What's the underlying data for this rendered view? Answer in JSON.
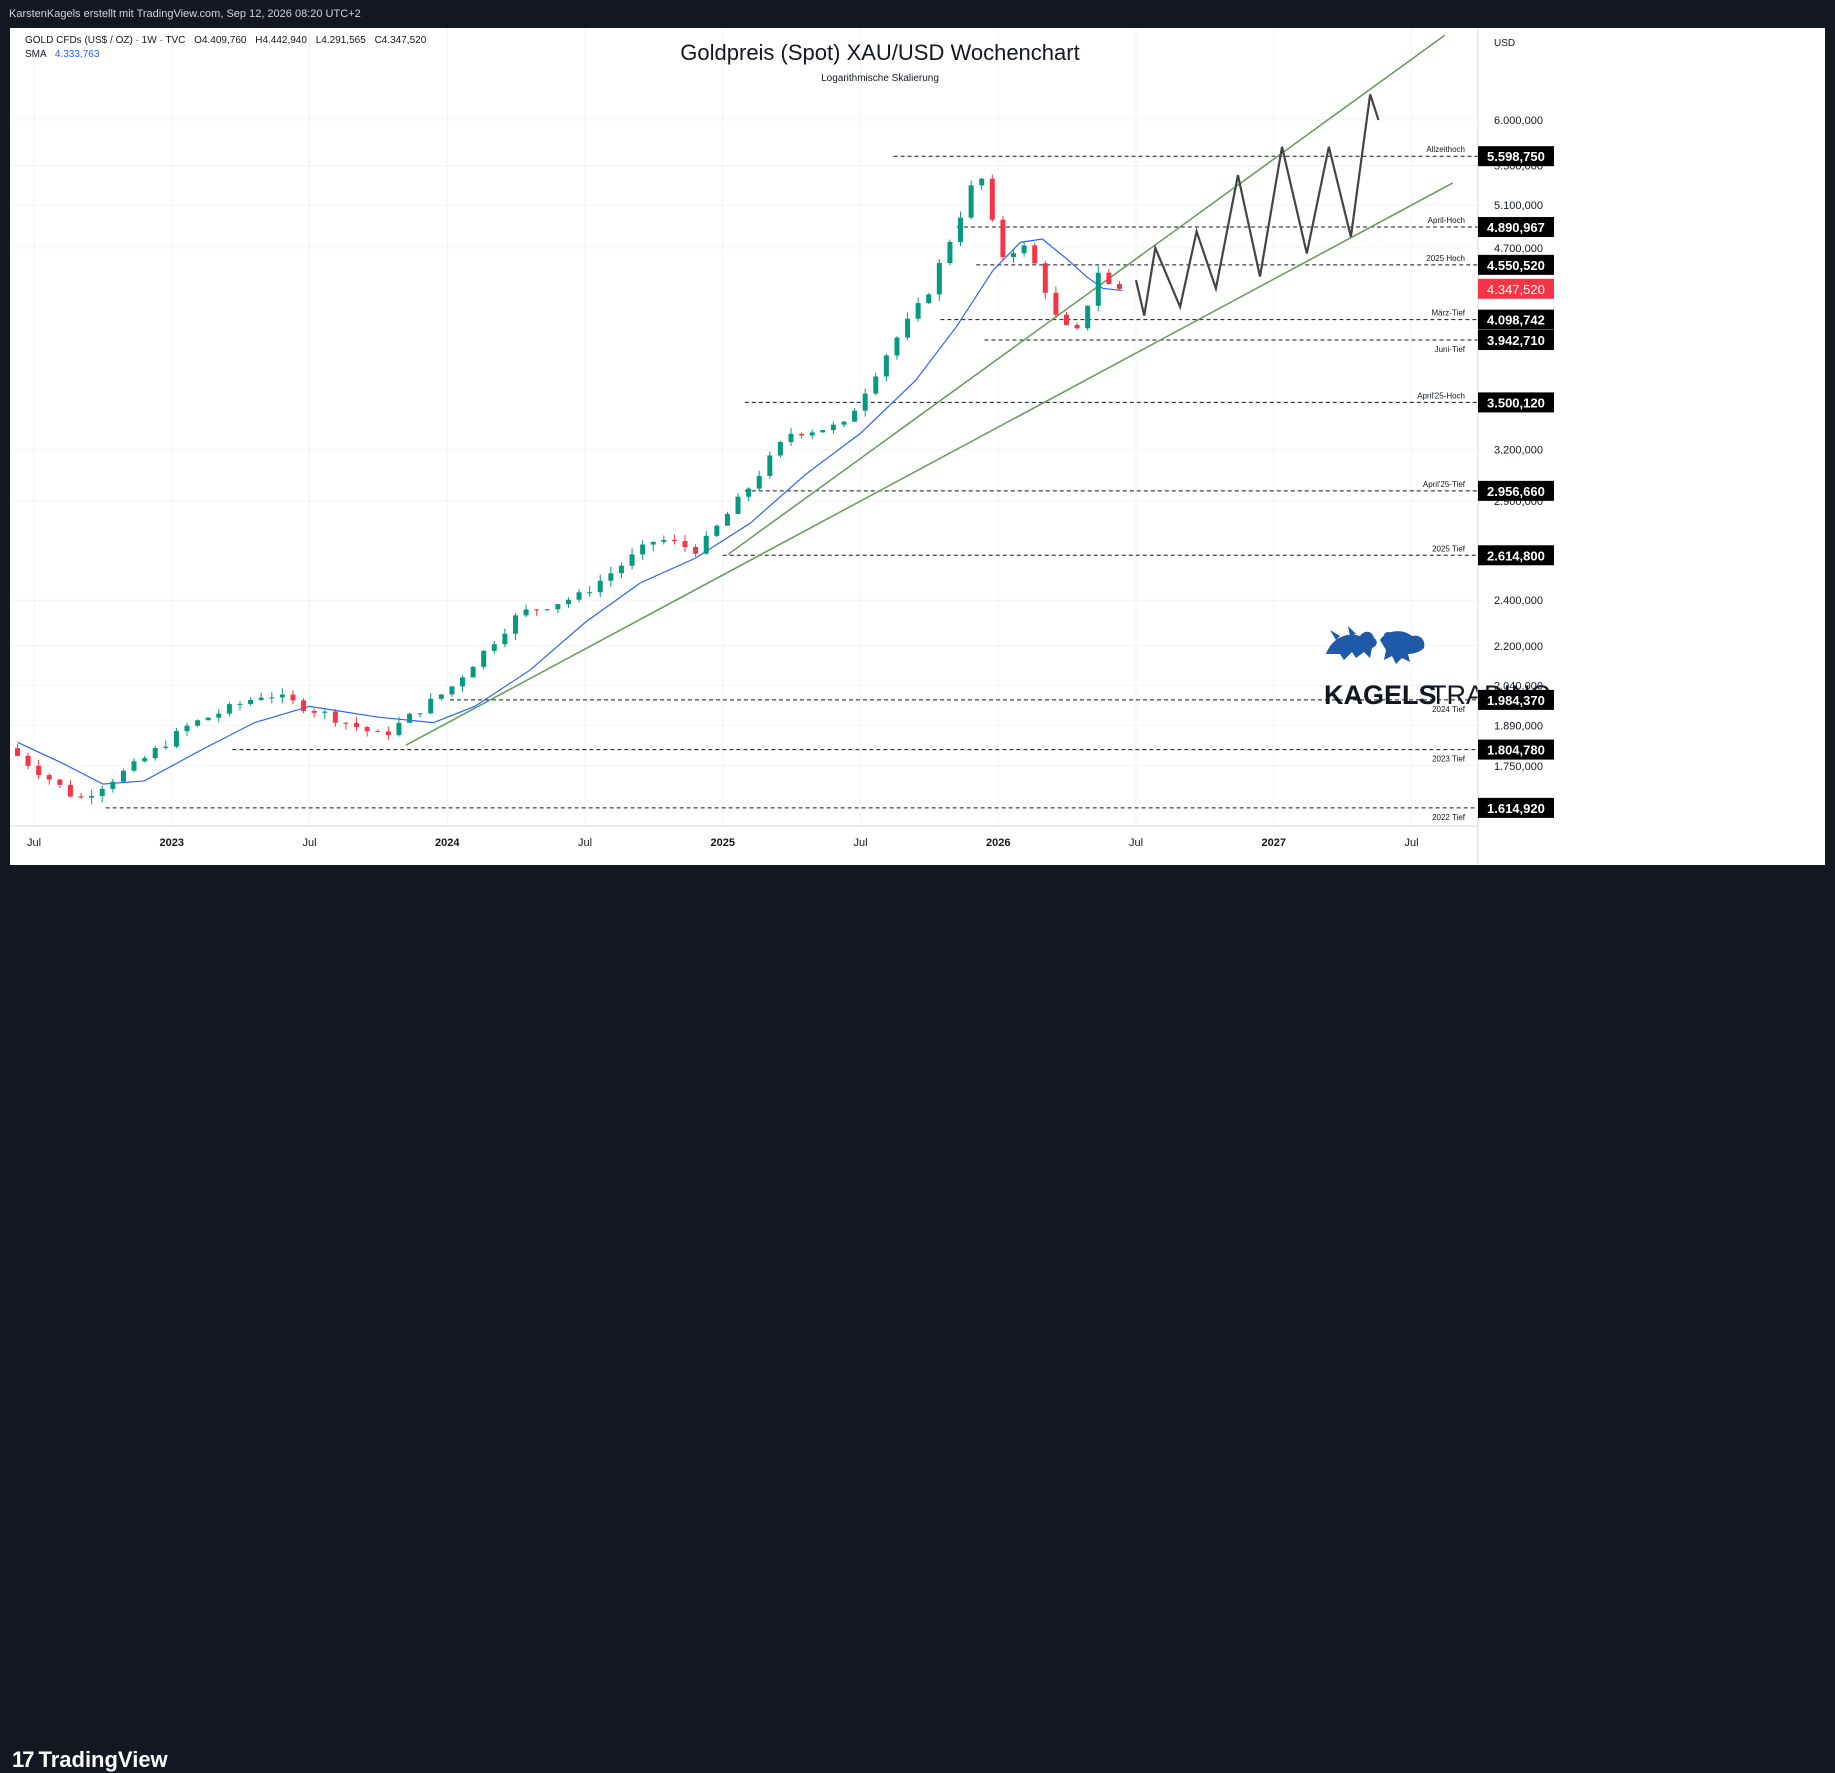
{
  "header": {
    "attribution": "KarstenKagels erstellt mit TradingView.com, Sep 12, 2026 08:20 UTC+2"
  },
  "legend": {
    "symbol_line": "GOLD CFDs (US$ / OZ) · 1W · TVC",
    "open": "O4.409,760",
    "high": "H4.442,940",
    "low": "L4.291,565",
    "close": "C4.347,520",
    "sma_label": "SMA",
    "sma_value": "4.333,763"
  },
  "footer": {
    "logo_text": "TradingView",
    "logo_mark": "17"
  },
  "watermark": {
    "brand": "KAGELS",
    "brand2": "TRADING"
  },
  "colors": {
    "up": "#089981",
    "down": "#f23645",
    "sma": "#2962ff",
    "trend": "#6a9e5e",
    "projection": "#444444",
    "last_price": "#f23645"
  },
  "chart_data": {
    "type": "candlestick",
    "title": "Goldpreis (Spot) XAU/USD Wochenchart",
    "subtitle": "Logarithmische Skalierung",
    "currency_label": "USD",
    "scale": "log",
    "ylim": [
      1560,
      7150
    ],
    "x_ticks": [
      {
        "t": 0.0,
        "label": "Jul",
        "bold": false
      },
      {
        "t": 0.5,
        "label": "2023",
        "bold": true
      },
      {
        "t": 1.0,
        "label": "Jul",
        "bold": false
      },
      {
        "t": 1.5,
        "label": "2024",
        "bold": true
      },
      {
        "t": 2.0,
        "label": "Jul",
        "bold": false
      },
      {
        "t": 2.5,
        "label": "2025",
        "bold": true
      },
      {
        "t": 3.0,
        "label": "Jul",
        "bold": false
      },
      {
        "t": 3.5,
        "label": "2026",
        "bold": true
      },
      {
        "t": 4.0,
        "label": "Jul",
        "bold": false
      },
      {
        "t": 4.5,
        "label": "2027",
        "bold": true
      },
      {
        "t": 5.0,
        "label": "Jul",
        "bold": false
      }
    ],
    "y_ticks": [
      {
        "v": 6000,
        "label": "6.000,000"
      },
      {
        "v": 5500,
        "label": "5.500,000"
      },
      {
        "v": 5100,
        "label": "5.100,000"
      },
      {
        "v": 4700,
        "label": "4.700,000"
      },
      {
        "v": 3200,
        "label": "3.200,000"
      },
      {
        "v": 2900,
        "label": "2.900,000"
      },
      {
        "v": 2400,
        "label": "2.400,000"
      },
      {
        "v": 2200,
        "label": "2.200,000"
      },
      {
        "v": 2040,
        "label": "2.040,000"
      },
      {
        "v": 1890,
        "label": "1.890,000"
      },
      {
        "v": 1750,
        "label": "1.750,000"
      }
    ],
    "levels": [
      {
        "v": 5598.75,
        "badge": "5.598,750",
        "name": "Allzeithoch",
        "t0": 3.12
      },
      {
        "v": 4890.967,
        "badge": "4.890,967",
        "name": "April-Hoch",
        "t0": 3.35
      },
      {
        "v": 4550.52,
        "badge": "4.550,520",
        "name": "2025 Hoch",
        "t0": 3.42
      },
      {
        "v": 4098.742,
        "badge": "4.098,742",
        "name": "März-Tief",
        "t0": 3.29
      },
      {
        "v": 3942.71,
        "badge": "3.942,710",
        "name": "Juni-Tief",
        "t0": 3.45
      },
      {
        "v": 3500.12,
        "badge": "3.500,120",
        "name": "April'25-Hoch",
        "t0": 2.58
      },
      {
        "v": 2956.66,
        "badge": "2.956,660",
        "name": "April'25-Tief",
        "t0": 2.58
      },
      {
        "v": 2614.8,
        "badge": "2.614,800",
        "name": "2025 Tief",
        "t0": 2.5
      },
      {
        "v": 1984.37,
        "badge": "1.984,370",
        "name": "2024 Tief",
        "t0": 1.51
      },
      {
        "v": 1804.78,
        "badge": "1.804,780",
        "name": "2023 Tief",
        "t0": 0.72
      },
      {
        "v": 1614.92,
        "badge": "1.614,920",
        "name": "2022 Tief",
        "t0": 0.26
      }
    ],
    "last_price": {
      "v": 4347.52,
      "label": "4.347,520"
    },
    "path_points": [
      {
        "t": -0.06,
        "v": 1810
      },
      {
        "t": 0.2,
        "v": 1640
      },
      {
        "t": 0.42,
        "v": 1760
      },
      {
        "t": 0.6,
        "v": 1890
      },
      {
        "t": 0.88,
        "v": 2010
      },
      {
        "t": 1.1,
        "v": 1930
      },
      {
        "t": 1.3,
        "v": 1850
      },
      {
        "t": 1.55,
        "v": 2030
      },
      {
        "t": 1.8,
        "v": 2340
      },
      {
        "t": 2.02,
        "v": 2420
      },
      {
        "t": 2.3,
        "v": 2700
      },
      {
        "t": 2.45,
        "v": 2640
      },
      {
        "t": 2.62,
        "v": 2950
      },
      {
        "t": 2.78,
        "v": 3300
      },
      {
        "t": 2.98,
        "v": 3350
      },
      {
        "t": 3.15,
        "v": 3900
      },
      {
        "t": 3.28,
        "v": 4300
      },
      {
        "t": 3.4,
        "v": 5000
      },
      {
        "t": 3.47,
        "v": 5480
      },
      {
        "t": 3.5,
        "v": 5050
      },
      {
        "t": 3.56,
        "v": 4600
      },
      {
        "t": 3.62,
        "v": 4750
      },
      {
        "t": 3.68,
        "v": 4520
      },
      {
        "t": 3.76,
        "v": 4050
      },
      {
        "t": 3.83,
        "v": 4000
      },
      {
        "t": 3.9,
        "v": 4500
      },
      {
        "t": 3.95,
        "v": 4347.52
      }
    ],
    "sma_points": [
      {
        "t": -0.06,
        "v": 1830
      },
      {
        "t": 0.1,
        "v": 1760
      },
      {
        "t": 0.25,
        "v": 1690
      },
      {
        "t": 0.4,
        "v": 1700
      },
      {
        "t": 0.6,
        "v": 1800
      },
      {
        "t": 0.8,
        "v": 1900
      },
      {
        "t": 1.0,
        "v": 1960
      },
      {
        "t": 1.25,
        "v": 1920
      },
      {
        "t": 1.45,
        "v": 1900
      },
      {
        "t": 1.6,
        "v": 1960
      },
      {
        "t": 1.8,
        "v": 2100
      },
      {
        "t": 2.0,
        "v": 2300
      },
      {
        "t": 2.2,
        "v": 2480
      },
      {
        "t": 2.4,
        "v": 2600
      },
      {
        "t": 2.6,
        "v": 2780
      },
      {
        "t": 2.8,
        "v": 3050
      },
      {
        "t": 3.0,
        "v": 3300
      },
      {
        "t": 3.2,
        "v": 3650
      },
      {
        "t": 3.35,
        "v": 4050
      },
      {
        "t": 3.48,
        "v": 4500
      },
      {
        "t": 3.58,
        "v": 4750
      },
      {
        "t": 3.66,
        "v": 4780
      },
      {
        "t": 3.75,
        "v": 4600
      },
      {
        "t": 3.82,
        "v": 4450
      },
      {
        "t": 3.88,
        "v": 4350
      },
      {
        "t": 3.95,
        "v": 4333.763
      }
    ],
    "trendlines": [
      {
        "from": {
          "t": 1.35,
          "v": 1820
        },
        "to": {
          "t": 5.15,
          "v": 5320
        }
      },
      {
        "from": {
          "t": 2.52,
          "v": 2620
        },
        "to": {
          "t": 5.12,
          "v": 7050
        }
      }
    ],
    "projection": [
      {
        "t": 4.0,
        "v": 4420
      },
      {
        "t": 4.03,
        "v": 4130
      },
      {
        "t": 4.07,
        "v": 4700
      },
      {
        "t": 4.16,
        "v": 4200
      },
      {
        "t": 4.22,
        "v": 4850
      },
      {
        "t": 4.29,
        "v": 4350
      },
      {
        "t": 4.37,
        "v": 5400
      },
      {
        "t": 4.45,
        "v": 4450
      },
      {
        "t": 4.53,
        "v": 5700
      },
      {
        "t": 4.62,
        "v": 4650
      },
      {
        "t": 4.7,
        "v": 5700
      },
      {
        "t": 4.78,
        "v": 4800
      },
      {
        "t": 4.85,
        "v": 6300
      },
      {
        "t": 4.88,
        "v": 6000
      }
    ]
  }
}
